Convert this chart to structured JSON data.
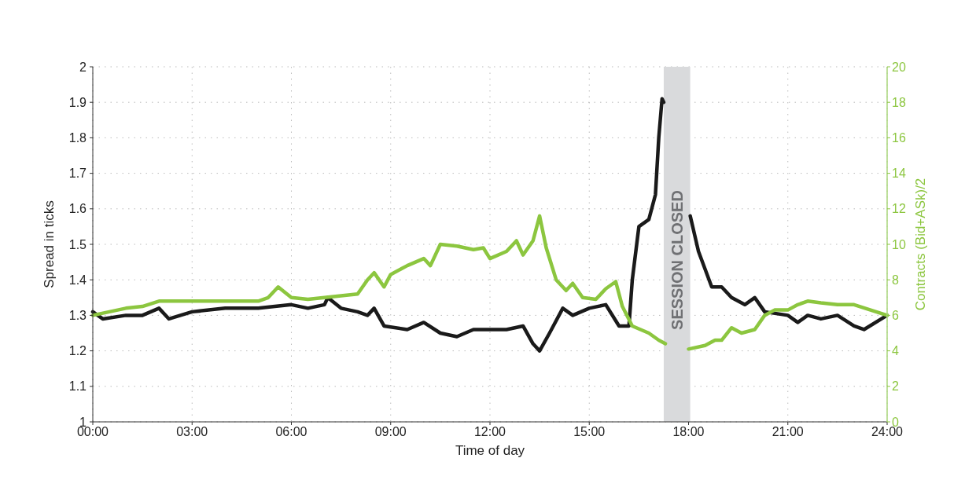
{
  "chart_data": {
    "type": "line",
    "xlabel": "Time of day",
    "ylabel": "Spread in ticks",
    "y2label": "Contracts (Bid+ASk)/2",
    "xlim": [
      0,
      24
    ],
    "xticks": [
      {
        "value": 0,
        "label": "00:00"
      },
      {
        "value": 3,
        "label": "03:00"
      },
      {
        "value": 6,
        "label": "06:00"
      },
      {
        "value": 9,
        "label": "09:00"
      },
      {
        "value": 12,
        "label": "12:00"
      },
      {
        "value": 15,
        "label": "15:00"
      },
      {
        "value": 18,
        "label": "18:00"
      },
      {
        "value": 21,
        "label": "21:00"
      },
      {
        "value": 24,
        "label": "24:00"
      }
    ],
    "ylim": [
      1,
      2
    ],
    "yticks": [
      1,
      1.1,
      1.2,
      1.3,
      1.4,
      1.5,
      1.6,
      1.7,
      1.8,
      1.9,
      2
    ],
    "y2lim": [
      0,
      20
    ],
    "y2ticks": [
      0,
      2,
      4,
      6,
      8,
      10,
      12,
      14,
      16,
      18,
      20
    ],
    "grid": true,
    "line_style": "solid",
    "bands": [
      {
        "axis": "x",
        "from": 17.25,
        "to": 18.05,
        "label": "SESSION CLOSED",
        "color": "#d9dadc"
      }
    ],
    "series": [
      {
        "color": "#1a1a1a",
        "x": [
          0,
          0.3,
          1,
          1.5,
          2,
          2.3,
          3,
          4,
          5,
          6,
          6.5,
          7,
          7.1,
          7.5,
          8,
          8.3,
          8.5,
          8.8,
          9.5,
          10,
          10.5,
          11,
          11.5,
          12,
          12.5,
          13,
          13.3,
          13.5,
          13.8,
          14.2,
          14.5,
          15,
          15.5,
          15.9,
          16.2,
          16.3,
          16.5,
          16.8,
          17,
          17.1,
          17.2,
          17.25,
          17.3,
          18.05,
          18.3,
          18.7,
          19,
          19.3,
          19.7,
          20,
          20.3,
          21,
          21.3,
          21.6,
          22,
          22.5,
          23,
          23.3,
          24
        ],
        "values": [
          1.31,
          1.29,
          1.3,
          1.3,
          1.32,
          1.29,
          1.31,
          1.32,
          1.32,
          1.33,
          1.32,
          1.33,
          1.35,
          1.32,
          1.31,
          1.3,
          1.32,
          1.27,
          1.26,
          1.28,
          1.25,
          1.24,
          1.26,
          1.26,
          1.26,
          1.27,
          1.22,
          1.2,
          1.25,
          1.32,
          1.3,
          1.32,
          1.33,
          1.27,
          1.27,
          1.4,
          1.55,
          1.57,
          1.64,
          1.8,
          1.91,
          1.9,
          null,
          1.58,
          1.48,
          1.38,
          1.38,
          1.35,
          1.33,
          1.35,
          1.31,
          1.3,
          1.28,
          1.3,
          1.29,
          1.3,
          1.27,
          1.26,
          1.3
        ]
      },
      {
        "color": "#8cc63f",
        "axis": "y2",
        "x": [
          0,
          0.5,
          1,
          1.5,
          2,
          3,
          4,
          5,
          5.3,
          5.6,
          6,
          6.5,
          7,
          8,
          8.3,
          8.5,
          8.8,
          9,
          9.5,
          10,
          10.2,
          10.5,
          11,
          11.5,
          11.8,
          12,
          12.5,
          12.8,
          13,
          13.3,
          13.5,
          13.7,
          14,
          14.3,
          14.5,
          14.8,
          15.2,
          15.5,
          15.8,
          16,
          16.3,
          16.8,
          17.1,
          17.3,
          17.6,
          18,
          18.5,
          18.8,
          19,
          19.3,
          19.6,
          20,
          20.3,
          20.6,
          21,
          21.3,
          21.6,
          22,
          22.5,
          23,
          23.5,
          24
        ],
        "values": [
          6,
          6.2,
          6.4,
          6.5,
          6.8,
          6.8,
          6.8,
          6.8,
          7,
          7.6,
          7,
          6.9,
          7,
          7.2,
          8,
          8.4,
          7.6,
          8.3,
          8.8,
          9.2,
          8.8,
          10,
          9.9,
          9.7,
          9.8,
          9.2,
          9.6,
          10.2,
          9.4,
          10.2,
          11.6,
          9.8,
          8,
          7.4,
          7.8,
          7,
          6.9,
          7.5,
          7.9,
          6.5,
          5.4,
          5,
          4.6,
          4.4,
          null,
          4.1,
          4.3,
          4.6,
          4.6,
          5.3,
          5,
          5.2,
          6,
          6.3,
          6.3,
          6.6,
          6.8,
          6.7,
          6.6,
          6.6,
          6.3,
          6
        ]
      }
    ]
  }
}
